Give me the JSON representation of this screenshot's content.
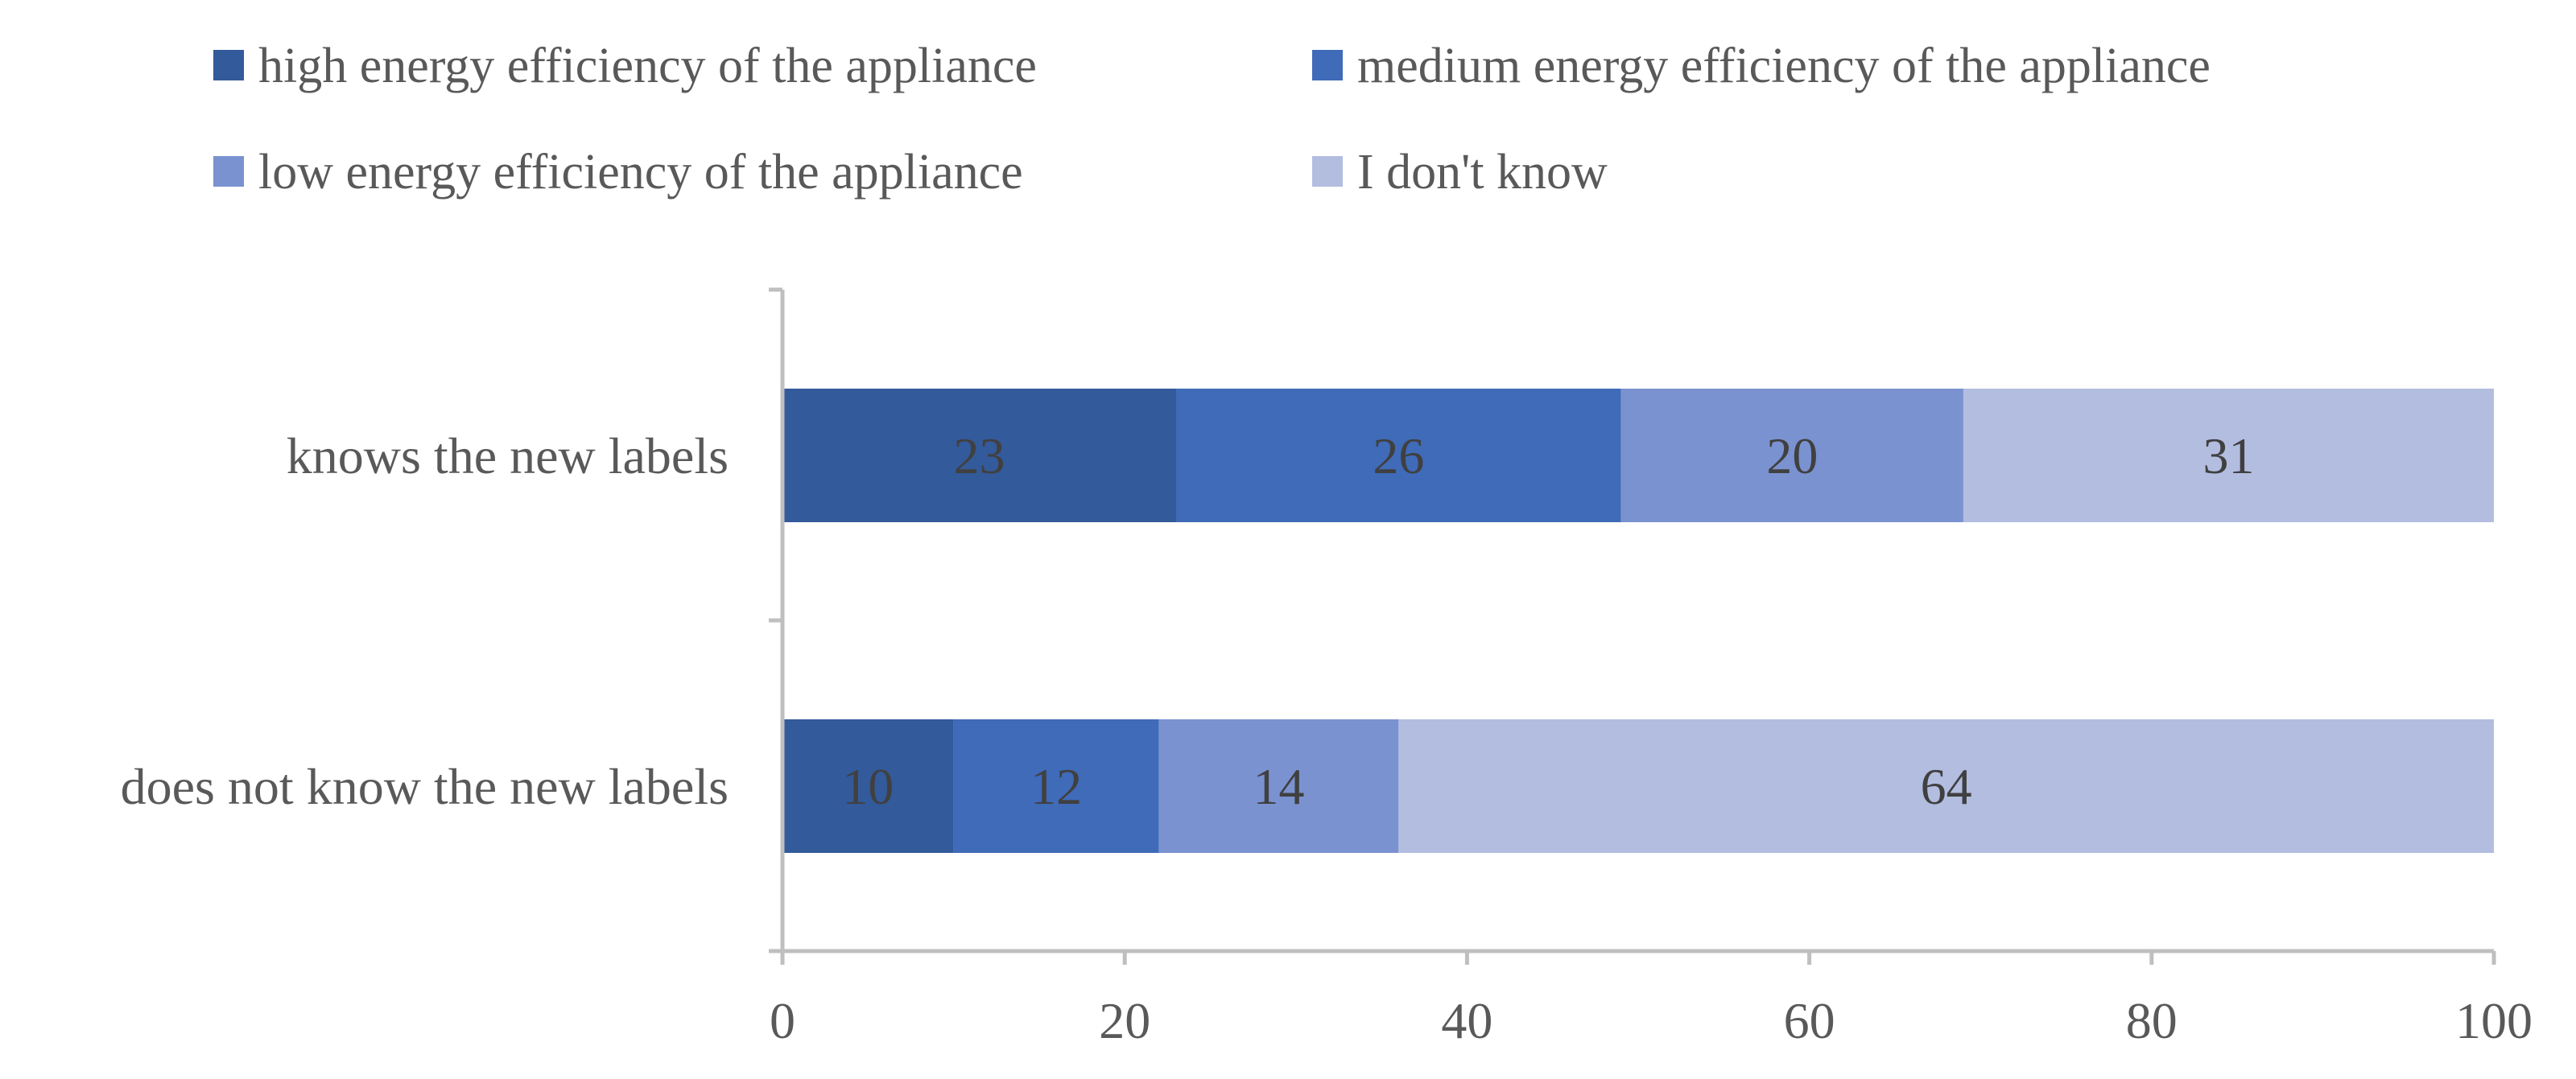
{
  "chart_data": {
    "type": "bar",
    "orientation": "horizontal",
    "stacked": true,
    "title": "",
    "xlabel": "",
    "ylabel": "",
    "xlim": [
      0,
      100
    ],
    "xticks": [
      "0",
      "20",
      "40",
      "60",
      "80",
      "100"
    ],
    "grid": false,
    "legend_position": "top",
    "categories": [
      "knows the new labels",
      "does not know the new labels"
    ],
    "series": [
      {
        "name": "high energy efficiency of the appliance",
        "color": "#335a9a",
        "values": [
          23,
          10
        ]
      },
      {
        "name": "medium energy efficiency of the appliance",
        "color": "#3f6bb8",
        "values": [
          26,
          12
        ]
      },
      {
        "name": "low energy efficiency of the appliance",
        "color": "#7a92d0",
        "values": [
          20,
          14
        ]
      },
      {
        "name": "I don't know",
        "color": "#b2bde0",
        "values": [
          31,
          64
        ]
      }
    ]
  }
}
